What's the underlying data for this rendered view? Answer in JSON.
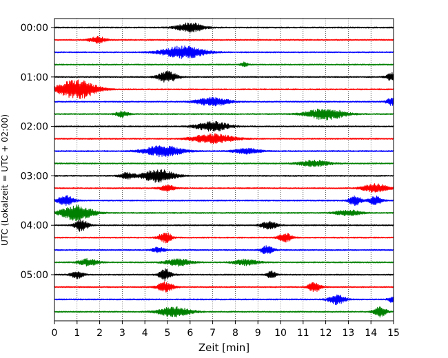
{
  "chart_data": {
    "type": "line",
    "title": "",
    "xlabel": "Zeit  [min]",
    "ylabel": "UTC (Lokalzeit = UTC + 02:00)",
    "xlim": [
      0,
      15
    ],
    "x_ticks": [
      "0",
      "1",
      "2",
      "3",
      "4",
      "5",
      "6",
      "7",
      "8",
      "9",
      "10",
      "11",
      "12",
      "13",
      "14",
      "15"
    ],
    "y_ticks": [
      "00:00",
      "01:00",
      "02:00",
      "03:00",
      "04:00",
      "05:00"
    ],
    "grid": "vertical-dotted",
    "colors": [
      "#000000",
      "#ff0000",
      "#0000ff",
      "#008000"
    ],
    "rows_per_hour": 4,
    "rows": [
      {
        "time": "00:00",
        "color": "#000000",
        "bursts": [
          [
            6.0,
            0.8,
            7
          ]
        ]
      },
      {
        "time": "00:15",
        "color": "#ff0000",
        "bursts": [
          [
            1.9,
            0.5,
            5
          ]
        ]
      },
      {
        "time": "00:30",
        "color": "#0000ff",
        "bursts": [
          [
            5.7,
            1.3,
            9
          ]
        ]
      },
      {
        "time": "00:45",
        "color": "#008000",
        "bursts": [
          [
            8.4,
            0.2,
            4
          ]
        ]
      },
      {
        "time": "01:00",
        "color": "#000000",
        "bursts": [
          [
            5.0,
            0.6,
            8
          ],
          [
            15.0,
            0.4,
            7
          ]
        ]
      },
      {
        "time": "01:15",
        "color": "#ff0000",
        "bursts": [
          [
            1.0,
            1.2,
            14
          ]
        ]
      },
      {
        "time": "01:30",
        "color": "#0000ff",
        "bursts": [
          [
            7.0,
            1.0,
            6
          ],
          [
            14.9,
            0.3,
            5
          ]
        ]
      },
      {
        "time": "01:45",
        "color": "#008000",
        "bursts": [
          [
            12.0,
            1.2,
            8
          ],
          [
            3.0,
            0.4,
            4
          ]
        ]
      },
      {
        "time": "02:00",
        "color": "#000000",
        "bursts": [
          [
            7.0,
            1.0,
            7
          ]
        ]
      },
      {
        "time": "02:15",
        "color": "#ff0000",
        "bursts": [
          [
            7.0,
            1.3,
            7
          ]
        ]
      },
      {
        "time": "02:30",
        "color": "#0000ff",
        "bursts": [
          [
            4.8,
            1.2,
            8
          ],
          [
            8.5,
            0.8,
            4
          ]
        ]
      },
      {
        "time": "02:45",
        "color": "#008000",
        "bursts": [
          [
            11.5,
            1.0,
            4
          ]
        ]
      },
      {
        "time": "03:00",
        "color": "#000000",
        "bursts": [
          [
            4.6,
            1.0,
            9
          ],
          [
            3.2,
            0.5,
            4
          ]
        ]
      },
      {
        "time": "03:15",
        "color": "#ff0000",
        "bursts": [
          [
            14.2,
            0.8,
            6
          ],
          [
            5.0,
            0.5,
            4
          ]
        ]
      },
      {
        "time": "03:30",
        "color": "#0000ff",
        "bursts": [
          [
            0.5,
            0.5,
            7
          ],
          [
            13.3,
            0.4,
            7
          ],
          [
            14.2,
            0.4,
            6
          ]
        ]
      },
      {
        "time": "03:45",
        "color": "#008000",
        "bursts": [
          [
            1.0,
            1.0,
            11
          ],
          [
            13.0,
            0.8,
            4
          ]
        ]
      },
      {
        "time": "04:00",
        "color": "#000000",
        "bursts": [
          [
            1.2,
            0.4,
            9
          ],
          [
            9.5,
            0.5,
            6
          ]
        ]
      },
      {
        "time": "04:15",
        "color": "#ff0000",
        "bursts": [
          [
            4.9,
            0.4,
            8
          ],
          [
            10.2,
            0.4,
            7
          ]
        ]
      },
      {
        "time": "04:30",
        "color": "#0000ff",
        "bursts": [
          [
            9.4,
            0.4,
            6
          ],
          [
            4.6,
            0.4,
            4
          ]
        ]
      },
      {
        "time": "04:45",
        "color": "#008000",
        "bursts": [
          [
            1.5,
            0.6,
            5
          ],
          [
            5.5,
            0.8,
            5
          ],
          [
            8.5,
            0.8,
            4
          ]
        ]
      },
      {
        "time": "05:00",
        "color": "#000000",
        "bursts": [
          [
            4.9,
            0.4,
            8
          ],
          [
            1.0,
            0.4,
            5
          ],
          [
            9.6,
            0.3,
            5
          ]
        ]
      },
      {
        "time": "05:15",
        "color": "#ff0000",
        "bursts": [
          [
            4.9,
            0.5,
            7
          ],
          [
            11.5,
            0.4,
            7
          ]
        ]
      },
      {
        "time": "05:30",
        "color": "#0000ff",
        "bursts": [
          [
            12.5,
            0.5,
            7
          ],
          [
            15.0,
            0.3,
            5
          ]
        ]
      },
      {
        "time": "05:45",
        "color": "#008000",
        "bursts": [
          [
            5.3,
            1.0,
            7
          ],
          [
            14.4,
            0.4,
            7
          ]
        ]
      }
    ]
  }
}
